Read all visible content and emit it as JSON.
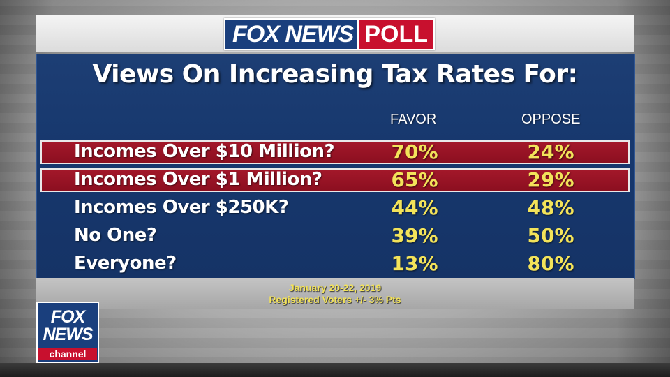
{
  "header": {
    "logo_fox": "FOX NEWS",
    "logo_poll": "POLL"
  },
  "chart_data": {
    "type": "table",
    "title": "Views On Increasing Tax Rates For:",
    "columns": [
      "FAVOR",
      "OPPOSE"
    ],
    "rows": [
      {
        "label": "Incomes Over $10 Million?",
        "favor": "70%",
        "oppose": "24%",
        "highlighted": true
      },
      {
        "label": "Incomes Over $1 Million?",
        "favor": "65%",
        "oppose": "29%",
        "highlighted": true
      },
      {
        "label": "Incomes Over $250K?",
        "favor": "44%",
        "oppose": "48%",
        "highlighted": false
      },
      {
        "label": "No One?",
        "favor": "39%",
        "oppose": "50%",
        "highlighted": false
      },
      {
        "label": "Everyone?",
        "favor": "13%",
        "oppose": "80%",
        "highlighted": false
      }
    ]
  },
  "footer": {
    "dates": "January 20-22, 2019",
    "sample": "Registered Voters +/- 3% Pts"
  },
  "bug": {
    "line1": "FOX",
    "line2": "NEWS",
    "line3": "channel"
  },
  "colors": {
    "panel_blue": "#17386e",
    "highlight_red": "#9a1426",
    "value_yellow": "#f3e35a",
    "brand_red": "#c8102e"
  }
}
